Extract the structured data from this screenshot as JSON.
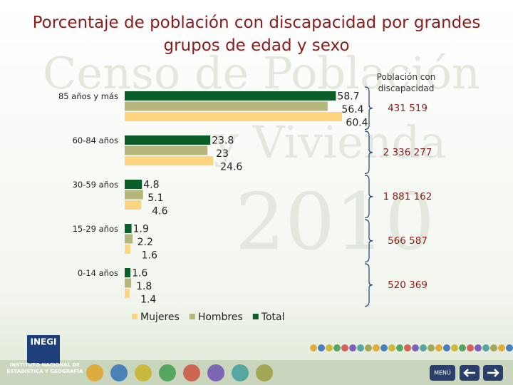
{
  "chart_data": {
    "type": "bar",
    "orientation": "horizontal",
    "title": "Porcentaje de población con discapacidad por grandes grupos de edad y sexo",
    "watermark": [
      "Censo de Población",
      "y Vivienda",
      "2010"
    ],
    "categories": [
      "85 años y más",
      "60-84 años",
      "30-59 años",
      "15-29 años",
      "0-14 años"
    ],
    "series": [
      {
        "name": "Mujeres",
        "color": "#fdd47f",
        "values": [
          60.4,
          24.6,
          4.6,
          1.6,
          1.4
        ]
      },
      {
        "name": "Hombres",
        "color": "#b5b77a",
        "values": [
          56.4,
          23.0,
          5.1,
          2.2,
          1.8
        ]
      },
      {
        "name": "Total",
        "color": "#0b5e2a",
        "values": [
          58.7,
          23.8,
          4.8,
          1.9,
          1.6
        ]
      }
    ],
    "value_labels_shown": true,
    "population_header": "Población con discapacidad",
    "population": [
      {
        "value": 431519,
        "label": "431 519"
      },
      {
        "value": 2336277,
        "label": "2 336 277"
      },
      {
        "value": 1881162,
        "label": "1 881 162"
      },
      {
        "value": 566587,
        "label": "566 587"
      },
      {
        "value": 520369,
        "label": "520 369"
      }
    ]
  },
  "footer": {
    "logo": "INEGI",
    "institute": "INSTITUTO NACIONAL DE ESTADÍSTICA Y GEOGRAFÍA",
    "menu": "MENÚ"
  }
}
